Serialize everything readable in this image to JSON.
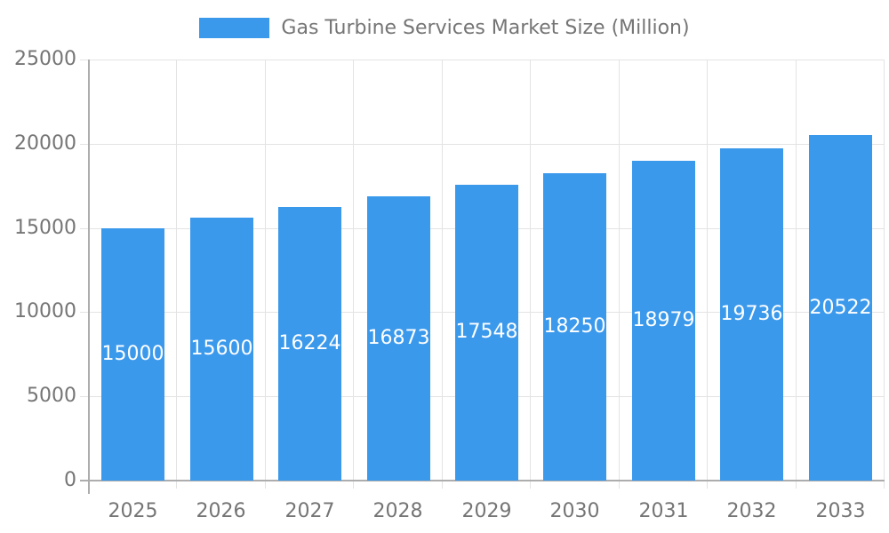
{
  "chart_data": {
    "type": "bar",
    "title": "Gas Turbine Services Market Size (Million)",
    "categories": [
      "2025",
      "2026",
      "2027",
      "2028",
      "2029",
      "2030",
      "2031",
      "2032",
      "2033"
    ],
    "values": [
      15000,
      15600,
      16224,
      16873,
      17548,
      18250,
      18979,
      19736,
      20522
    ],
    "bar_labels": [
      "15000",
      "15600",
      "16224",
      "16873",
      "17548",
      "18250",
      "18979",
      "19736",
      "20522"
    ],
    "series": [
      {
        "name": "Gas Turbine Services Market Size (Million)",
        "values": [
          15000,
          15600,
          16224,
          16873,
          17548,
          18250,
          18979,
          19736,
          20522
        ]
      }
    ],
    "xlabel": "",
    "ylabel": "",
    "ylim": [
      0,
      25000
    ],
    "yticks": [
      0,
      5000,
      10000,
      15000,
      20000,
      25000
    ],
    "grid": true,
    "legend_position": "top"
  },
  "legend": {
    "label": "Gas Turbine Services Market Size (Million)"
  },
  "colors": {
    "bar": "#3b99ec",
    "gridline": "#e3e3e3",
    "axis": "#adadad",
    "tick_label": "#757575",
    "bar_label": "#ffffff",
    "background": "#ffffff"
  }
}
